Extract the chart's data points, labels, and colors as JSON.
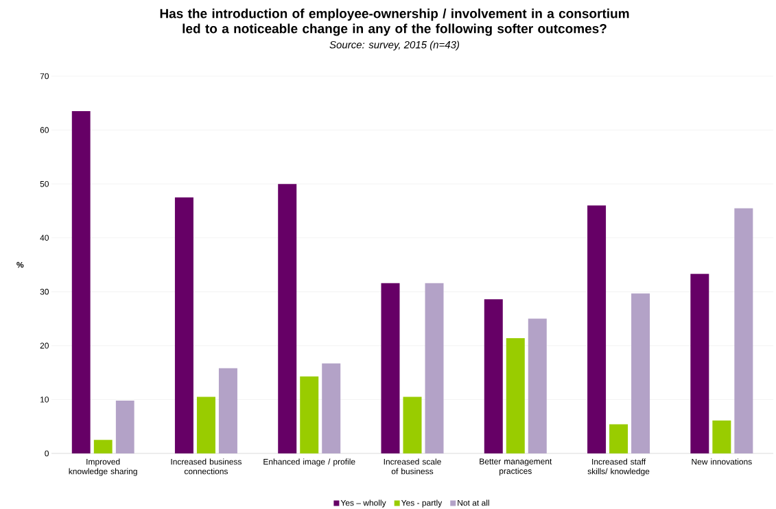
{
  "chart_data": {
    "type": "bar",
    "title": "Has the introduction of employee-ownership / involvement in a consortium led to a noticeable change in any of the following softer outcomes?",
    "annotations": [
      "Source: survey, 2015 (n=43)"
    ],
    "ylabel": "%",
    "categories": [
      "Improved knowledge sharing",
      "Increased business connections",
      "Enhanced image / profile",
      "Increased scale of business",
      "Better management practices",
      "Increased staff skills/ knowledge",
      "New innovations"
    ],
    "series": [
      {
        "name": "Yes – wholly",
        "color": "#660066",
        "values": [
          63.5,
          47.5,
          50,
          31.6,
          28.6,
          46,
          33.3
        ]
      },
      {
        "name": "Yes - partly",
        "color": "#99cc00",
        "values": [
          2.5,
          10.5,
          14.3,
          10.5,
          21.4,
          5.4,
          6.1
        ]
      },
      {
        "name": "Not at all",
        "color": "#b3a2c7",
        "values": [
          9.8,
          15.8,
          16.7,
          31.6,
          25,
          29.7,
          45.5
        ]
      }
    ],
    "ylim": [
      0,
      70
    ],
    "yticks": [
      0,
      10,
      20,
      30,
      40,
      50,
      60,
      70
    ],
    "grid": "y",
    "legend": "bottom"
  }
}
